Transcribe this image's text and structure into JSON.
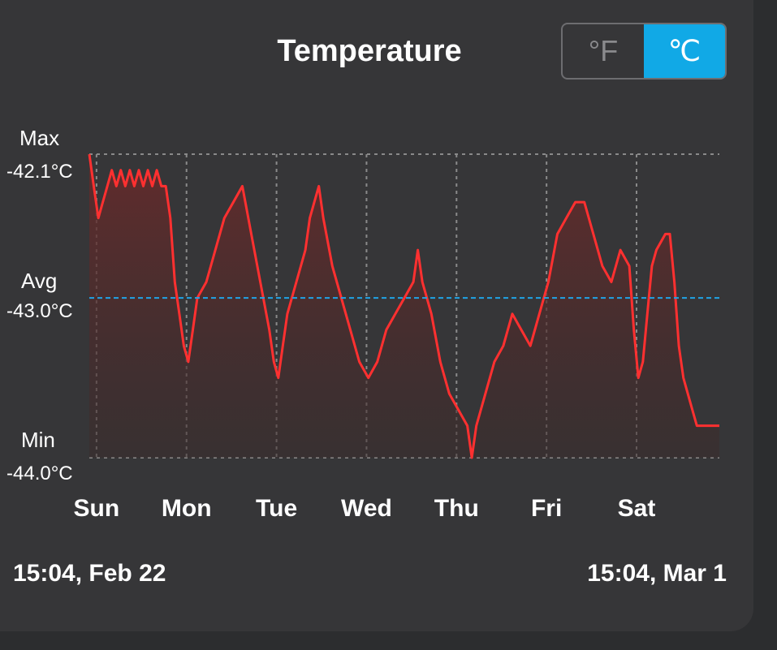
{
  "header": {
    "title": "Temperature",
    "units": [
      {
        "label": "°F",
        "active": false
      },
      {
        "label": "℃",
        "active": true
      }
    ]
  },
  "stats": {
    "max_label": "Max",
    "max_value": "-42.1°C",
    "avg_label": "Avg",
    "avg_value": "-43.0°C",
    "min_label": "Min",
    "min_value": "-44.0°C"
  },
  "range": {
    "start": "15:04, Feb 22",
    "end": "15:04, Mar 1"
  },
  "colors": {
    "line": "#ff3030",
    "avg_line": "#20a4e6",
    "grid": "#8a8a8a",
    "accent": "#11a9e6"
  },
  "chart_data": {
    "type": "line",
    "title": "Temperature",
    "x_unit": "days",
    "xlim": [
      0,
      7
    ],
    "ylim": [
      -44.0,
      -42.1
    ],
    "grid": true,
    "x_ticks": [
      {
        "label": "Sun",
        "x": 0.08
      },
      {
        "label": "Mon",
        "x": 1.08
      },
      {
        "label": "Tue",
        "x": 2.08
      },
      {
        "label": "Wed",
        "x": 3.08
      },
      {
        "label": "Thu",
        "x": 4.08
      },
      {
        "label": "Fri",
        "x": 5.08
      },
      {
        "label": "Sat",
        "x": 6.08
      }
    ],
    "avg": -43.0,
    "series": [
      {
        "points": [
          [
            0.0,
            -42.1
          ],
          [
            0.05,
            -42.3
          ],
          [
            0.1,
            -42.5
          ],
          [
            0.15,
            -42.4
          ],
          [
            0.2,
            -42.3
          ],
          [
            0.25,
            -42.2
          ],
          [
            0.3,
            -42.3
          ],
          [
            0.35,
            -42.2
          ],
          [
            0.4,
            -42.3
          ],
          [
            0.45,
            -42.2
          ],
          [
            0.5,
            -42.3
          ],
          [
            0.55,
            -42.2
          ],
          [
            0.6,
            -42.3
          ],
          [
            0.65,
            -42.2
          ],
          [
            0.7,
            -42.3
          ],
          [
            0.75,
            -42.2
          ],
          [
            0.8,
            -42.3
          ],
          [
            0.85,
            -42.3
          ],
          [
            0.9,
            -42.5
          ],
          [
            0.95,
            -42.9
          ],
          [
            1.0,
            -43.1
          ],
          [
            1.05,
            -43.3
          ],
          [
            1.1,
            -43.4
          ],
          [
            1.15,
            -43.2
          ],
          [
            1.2,
            -43.0
          ],
          [
            1.3,
            -42.9
          ],
          [
            1.4,
            -42.7
          ],
          [
            1.5,
            -42.5
          ],
          [
            1.6,
            -42.4
          ],
          [
            1.7,
            -42.3
          ],
          [
            1.8,
            -42.6
          ],
          [
            1.9,
            -42.9
          ],
          [
            2.0,
            -43.2
          ],
          [
            2.05,
            -43.4
          ],
          [
            2.1,
            -43.5
          ],
          [
            2.15,
            -43.3
          ],
          [
            2.2,
            -43.1
          ],
          [
            2.3,
            -42.9
          ],
          [
            2.4,
            -42.7
          ],
          [
            2.45,
            -42.5
          ],
          [
            2.5,
            -42.4
          ],
          [
            2.55,
            -42.3
          ],
          [
            2.6,
            -42.5
          ],
          [
            2.7,
            -42.8
          ],
          [
            2.8,
            -43.0
          ],
          [
            2.9,
            -43.2
          ],
          [
            3.0,
            -43.4
          ],
          [
            3.1,
            -43.5
          ],
          [
            3.2,
            -43.4
          ],
          [
            3.3,
            -43.2
          ],
          [
            3.4,
            -43.1
          ],
          [
            3.5,
            -43.0
          ],
          [
            3.6,
            -42.9
          ],
          [
            3.65,
            -42.7
          ],
          [
            3.7,
            -42.9
          ],
          [
            3.8,
            -43.1
          ],
          [
            3.9,
            -43.4
          ],
          [
            4.0,
            -43.6
          ],
          [
            4.1,
            -43.7
          ],
          [
            4.2,
            -43.8
          ],
          [
            4.25,
            -44.0
          ],
          [
            4.3,
            -43.8
          ],
          [
            4.4,
            -43.6
          ],
          [
            4.5,
            -43.4
          ],
          [
            4.6,
            -43.3
          ],
          [
            4.7,
            -43.1
          ],
          [
            4.8,
            -43.2
          ],
          [
            4.9,
            -43.3
          ],
          [
            5.0,
            -43.1
          ],
          [
            5.1,
            -42.9
          ],
          [
            5.2,
            -42.6
          ],
          [
            5.3,
            -42.5
          ],
          [
            5.4,
            -42.4
          ],
          [
            5.5,
            -42.4
          ],
          [
            5.6,
            -42.6
          ],
          [
            5.7,
            -42.8
          ],
          [
            5.8,
            -42.9
          ],
          [
            5.9,
            -42.7
          ],
          [
            6.0,
            -42.8
          ],
          [
            6.05,
            -43.2
          ],
          [
            6.1,
            -43.5
          ],
          [
            6.15,
            -43.4
          ],
          [
            6.2,
            -43.1
          ],
          [
            6.25,
            -42.8
          ],
          [
            6.3,
            -42.7
          ],
          [
            6.4,
            -42.6
          ],
          [
            6.45,
            -42.6
          ],
          [
            6.5,
            -42.9
          ],
          [
            6.55,
            -43.3
          ],
          [
            6.6,
            -43.5
          ],
          [
            6.65,
            -43.6
          ],
          [
            6.7,
            -43.7
          ],
          [
            6.75,
            -43.8
          ],
          [
            7.0,
            -43.8
          ]
        ]
      }
    ]
  }
}
